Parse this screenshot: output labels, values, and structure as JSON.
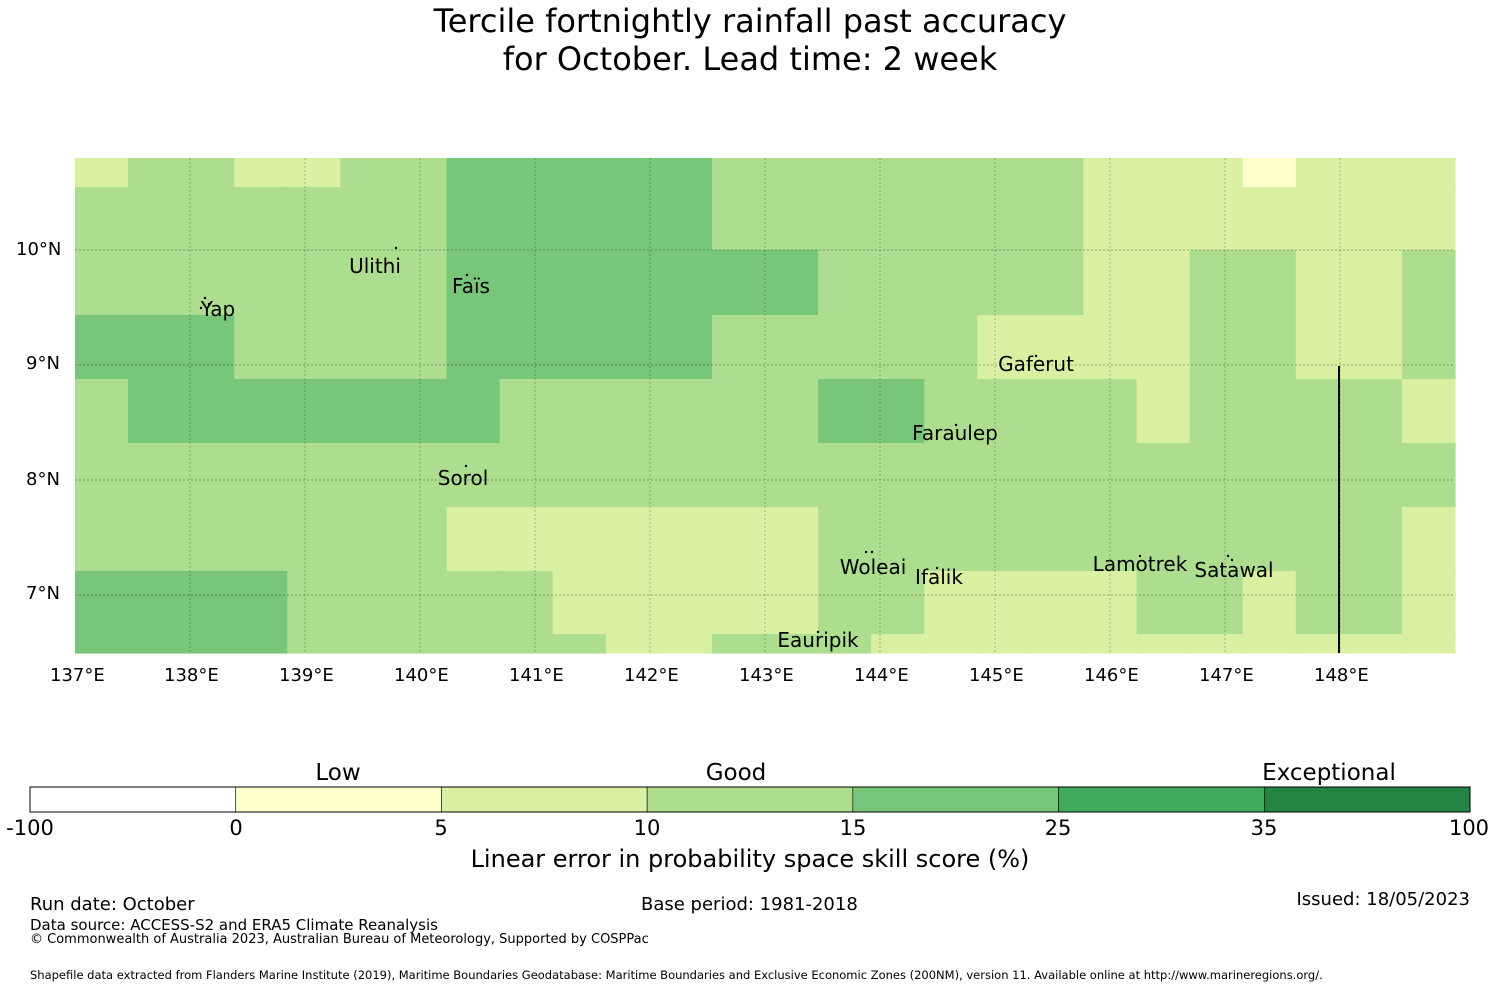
{
  "title": {
    "line1": "Tercile fortnightly rainfall past accuracy",
    "line2": "for October. Lead time: 2 week"
  },
  "map": {
    "lon_range": [
      137.0,
      149.0
    ],
    "lat_range": [
      6.5,
      10.8
    ],
    "x_ticks": [
      "137°E",
      "138°E",
      "139°E",
      "140°E",
      "141°E",
      "142°E",
      "143°E",
      "144°E",
      "145°E",
      "146°E",
      "147°E",
      "148°E"
    ],
    "y_ticks": [
      "10°N",
      "9°N",
      "8°N",
      "7°N"
    ],
    "places": [
      {
        "name": "Yap"
      },
      {
        "name": "Ulithi"
      },
      {
        "name": "Faïs"
      },
      {
        "name": "Gaferut"
      },
      {
        "name": "Faraulep"
      },
      {
        "name": "Sorol"
      },
      {
        "name": "Woleai"
      },
      {
        "name": "Ifalik"
      },
      {
        "name": "Lamotrek"
      },
      {
        "name": "Satawal"
      },
      {
        "name": "Eauripik"
      }
    ],
    "boundary_line": {
      "lon": 148.0,
      "lat_from": 6.5,
      "lat_to": 9.0
    },
    "grid_category_indices": [
      [
        2,
        3,
        3,
        2,
        2,
        3,
        3,
        4,
        4,
        4,
        4,
        4,
        3,
        3,
        3,
        3,
        3,
        3,
        3,
        2,
        2,
        2,
        1,
        2,
        2,
        2
      ],
      [
        3,
        3,
        3,
        3,
        3,
        3,
        3,
        4,
        4,
        4,
        4,
        4,
        3,
        3,
        3,
        3,
        3,
        3,
        3,
        2,
        2,
        2,
        2,
        2,
        2,
        2
      ],
      [
        3,
        3,
        3,
        3,
        3,
        3,
        3,
        4,
        4,
        4,
        4,
        4,
        4,
        4,
        3,
        3,
        3,
        3,
        3,
        2,
        2,
        3,
        3,
        2,
        2,
        3
      ],
      [
        4,
        4,
        4,
        3,
        3,
        3,
        3,
        4,
        4,
        4,
        4,
        4,
        3,
        3,
        3,
        3,
        3,
        2,
        2,
        2,
        2,
        3,
        3,
        2,
        2,
        3
      ],
      [
        3,
        4,
        4,
        4,
        4,
        4,
        4,
        4,
        3,
        3,
        3,
        3,
        3,
        3,
        4,
        4,
        3,
        3,
        3,
        3,
        2,
        3,
        3,
        3,
        3,
        2
      ],
      [
        3,
        3,
        3,
        3,
        3,
        3,
        3,
        3,
        3,
        3,
        3,
        3,
        3,
        3,
        3,
        3,
        3,
        3,
        3,
        3,
        3,
        3,
        3,
        3,
        3,
        3
      ],
      [
        3,
        3,
        3,
        3,
        3,
        3,
        3,
        2,
        2,
        2,
        2,
        2,
        2,
        2,
        3,
        3,
        3,
        3,
        3,
        3,
        3,
        3,
        3,
        3,
        3,
        2
      ],
      [
        4,
        4,
        4,
        4,
        3,
        3,
        3,
        3,
        3,
        2,
        2,
        2,
        2,
        2,
        3,
        3,
        2,
        2,
        2,
        2,
        3,
        3,
        2,
        3,
        3,
        2
      ],
      [
        4,
        4,
        4,
        4,
        3,
        3,
        3,
        3,
        3,
        3,
        2,
        2,
        3,
        3,
        3,
        2,
        2,
        2,
        2,
        2,
        2,
        2,
        2,
        2,
        2,
        2
      ]
    ]
  },
  "colorbar": {
    "ticks": [
      "-100",
      "0",
      "5",
      "10",
      "15",
      "25",
      "35",
      "100"
    ],
    "colors": [
      "#ffffff",
      "#ffffcc",
      "#d9f0a3",
      "#addd8e",
      "#78c679",
      "#41ab5d",
      "#238443"
    ],
    "categories": [
      "Low",
      "Good",
      "Exceptional"
    ],
    "label": "Linear error in probability space skill score (%)"
  },
  "footer": {
    "run_date": "Run date: October",
    "base_period": "Base period: 1981-2018",
    "issued": "Issued: 18/05/2023",
    "data_source": "Data source: ACCESS-S2 and ERA5 Climate Reanalysis",
    "copyright": "© Commonwealth of Australia 2023, Australian Bureau of Meteorology, Supported by COSPPac",
    "shapefile": "Shapefile data extracted from Flanders Marine Institute (2019), Maritime Boundaries Geodatabase: Maritime Boundaries and Exclusive Economic Zones (200NM), version 11. Available online at http://www.marineregions.org/."
  }
}
